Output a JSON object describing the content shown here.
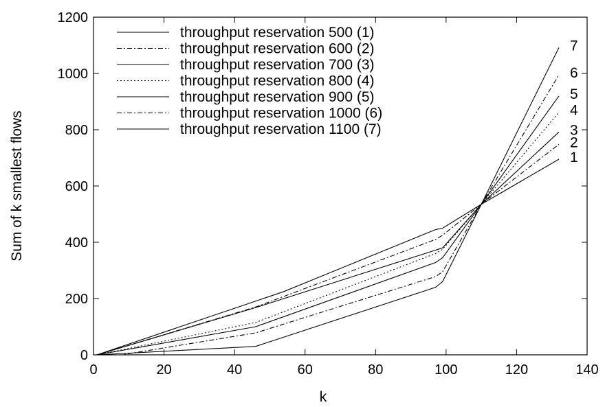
{
  "chart_data": {
    "type": "line",
    "title": "",
    "xlabel": "k",
    "ylabel": "Sum of k smallest flows",
    "xlim": [
      0,
      140
    ],
    "ylim": [
      0,
      1200
    ],
    "xticks": [
      "0",
      "20",
      "40",
      "60",
      "80",
      "100",
      "120",
      "140"
    ],
    "yticks": [
      "0",
      "200",
      "400",
      "600",
      "800",
      "1000",
      "1200"
    ],
    "grid": false,
    "legend_position": "top-left",
    "series": [
      {
        "name": "throughput reservation 500 (1)",
        "end_label": "1",
        "dash": "solid",
        "points": [
          [
            1,
            0
          ],
          [
            46,
            30
          ],
          [
            97,
            240
          ],
          [
            99,
            260
          ],
          [
            110,
            535
          ],
          [
            132,
            695
          ]
        ]
      },
      {
        "name": "throughput reservation 600 (2)",
        "end_label": "2",
        "dash": "dashdot",
        "points": [
          [
            1,
            0
          ],
          [
            8,
            0
          ],
          [
            46,
            78
          ],
          [
            97,
            278
          ],
          [
            99,
            295
          ],
          [
            110,
            535
          ],
          [
            132,
            748
          ]
        ]
      },
      {
        "name": "throughput reservation 700 (3)",
        "end_label": "3",
        "dash": "solid",
        "points": [
          [
            1,
            0
          ],
          [
            46,
            100
          ],
          [
            97,
            328
          ],
          [
            99,
            345
          ],
          [
            110,
            535
          ],
          [
            132,
            792
          ]
        ]
      },
      {
        "name": "throughput reservation 800 (4)",
        "end_label": "4",
        "dash": "dotted",
        "points": [
          [
            1,
            0
          ],
          [
            46,
            115
          ],
          [
            97,
            360
          ],
          [
            99,
            375
          ],
          [
            110,
            535
          ],
          [
            132,
            862
          ]
        ]
      },
      {
        "name": "throughput reservation 900 (5)",
        "end_label": "5",
        "dash": "solid",
        "points": [
          [
            1,
            0
          ],
          [
            46,
            168
          ],
          [
            97,
            372
          ],
          [
            99,
            380
          ],
          [
            110,
            535
          ],
          [
            132,
            920
          ]
        ]
      },
      {
        "name": "throughput reservation 1000 (6)",
        "end_label": "6",
        "dash": "dashdot",
        "points": [
          [
            1,
            0
          ],
          [
            46,
            170
          ],
          [
            97,
            410
          ],
          [
            99,
            425
          ],
          [
            110,
            535
          ],
          [
            132,
            995
          ]
        ]
      },
      {
        "name": "throughput reservation 1100 (7)",
        "end_label": "7",
        "dash": "solid",
        "points": [
          [
            1,
            0
          ],
          [
            54,
            225
          ],
          [
            97,
            445
          ],
          [
            99,
            450
          ],
          [
            110,
            535
          ],
          [
            132,
            1092
          ]
        ]
      }
    ]
  }
}
